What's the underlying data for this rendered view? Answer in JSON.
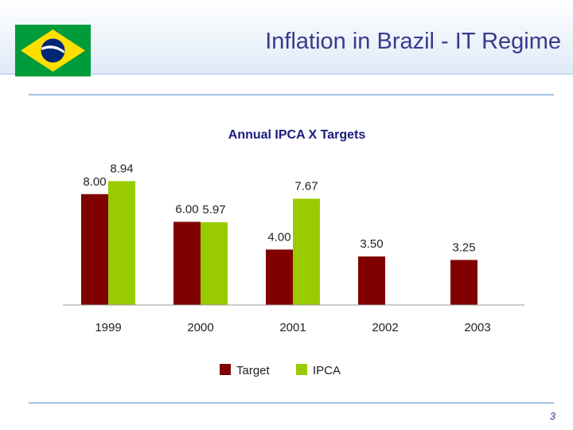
{
  "slide": {
    "title": "Inflation in Brazil - IT Regime",
    "page_number": "3"
  },
  "flag": {
    "name": "Brazil",
    "colors": {
      "green": "#009b3a",
      "yellow": "#fedf00",
      "blue": "#002776",
      "white": "#ffffff"
    }
  },
  "colors": {
    "title": "#3a3a8c",
    "target": "#800000",
    "ipca": "#99cc00",
    "rule": "#a9c3e6",
    "chart_title": "#1a1a80"
  },
  "chart_data": {
    "type": "bar",
    "title": "Annual IPCA X Targets",
    "categories": [
      "1999",
      "2000",
      "2001",
      "2002",
      "2003"
    ],
    "series": [
      {
        "name": "Target",
        "color": "#800000",
        "values": [
          8.0,
          6.0,
          4.0,
          3.5,
          3.25
        ],
        "labels": [
          "8.00",
          "6.00",
          "4.00",
          "3.50",
          "3.25"
        ]
      },
      {
        "name": "IPCA",
        "color": "#99cc00",
        "values": [
          8.94,
          5.97,
          7.67,
          null,
          null
        ],
        "labels": [
          "8.94",
          "5.97",
          "7.67",
          "",
          ""
        ]
      }
    ],
    "xlabel": "",
    "ylabel": "",
    "ylim": [
      0,
      9
    ],
    "grid": false,
    "legend": "bottom-center"
  }
}
